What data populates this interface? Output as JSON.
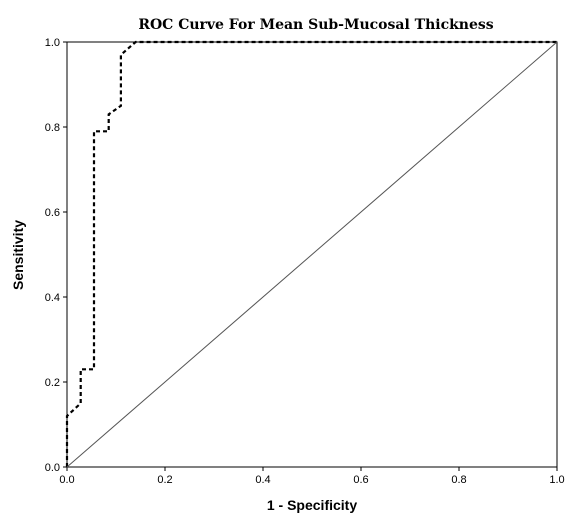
{
  "chart_data": {
    "type": "line",
    "title": "ROC Curve For Mean Sub-Mucosal Thickness",
    "xlabel": "1 - Specificity",
    "ylabel": "Sensitivity",
    "xlim": [
      0.0,
      1.0
    ],
    "ylim": [
      0.0,
      1.0
    ],
    "xticks": [
      "0.0",
      "0.2",
      "0.4",
      "0.6",
      "0.8",
      "1.0"
    ],
    "yticks": [
      "0.0",
      "0.2",
      "0.4",
      "0.6",
      "0.8",
      "1.0"
    ],
    "grid": false,
    "legend": "none",
    "series": [
      {
        "style": "dashed",
        "color": "#000000",
        "x": [
          0.0,
          0.0,
          0.0,
          0.0,
          0.028,
          0.028,
          0.055,
          0.055,
          0.085,
          0.085,
          0.11,
          0.11,
          0.14,
          0.14,
          1.0
        ],
        "y": [
          0.0,
          0.06,
          0.12,
          0.12,
          0.15,
          0.23,
          0.23,
          0.79,
          0.79,
          0.83,
          0.85,
          0.97,
          1.0,
          1.0,
          1.0
        ]
      },
      {
        "style": "solid",
        "color": "#555555",
        "x": [
          0.0,
          1.0
        ],
        "y": [
          0.0,
          1.0
        ]
      }
    ]
  }
}
